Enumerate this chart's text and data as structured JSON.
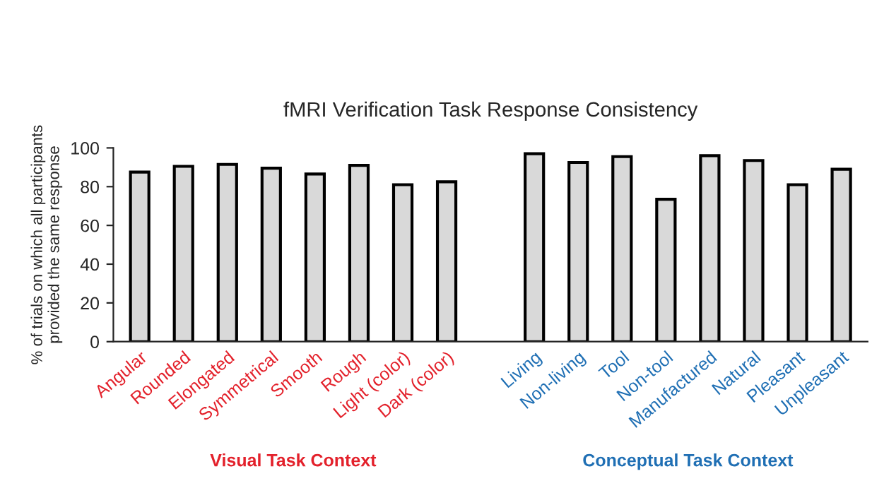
{
  "chart_data": {
    "type": "bar",
    "title": "fMRI Verification Task Response Consistency",
    "ylabel": "% of trials on which all participants\nprovided the same response",
    "categories": [
      "Angular",
      "Rounded",
      "Elongated",
      "Symmetrical",
      "Smooth",
      "Rough",
      "Light (color)",
      "Dark (color)",
      null,
      "Living",
      "Non-living",
      "Tool",
      "Non-tool",
      "Manufactured",
      "Natural",
      "Pleasant",
      "Unpleasant"
    ],
    "values": [
      87.5,
      90.5,
      91.5,
      89.5,
      86.5,
      91,
      81,
      82.5,
      null,
      97,
      92.5,
      95.5,
      73.5,
      96,
      93.5,
      81,
      89
    ],
    "color": "#d9d9d9",
    "ylim": [
      0,
      100
    ],
    "yticks": [
      0,
      20,
      40,
      60,
      80,
      100
    ],
    "grid": false,
    "legend": false,
    "annotations": [
      "Visual Task Context",
      "Conceptual Task Context"
    ]
  }
}
